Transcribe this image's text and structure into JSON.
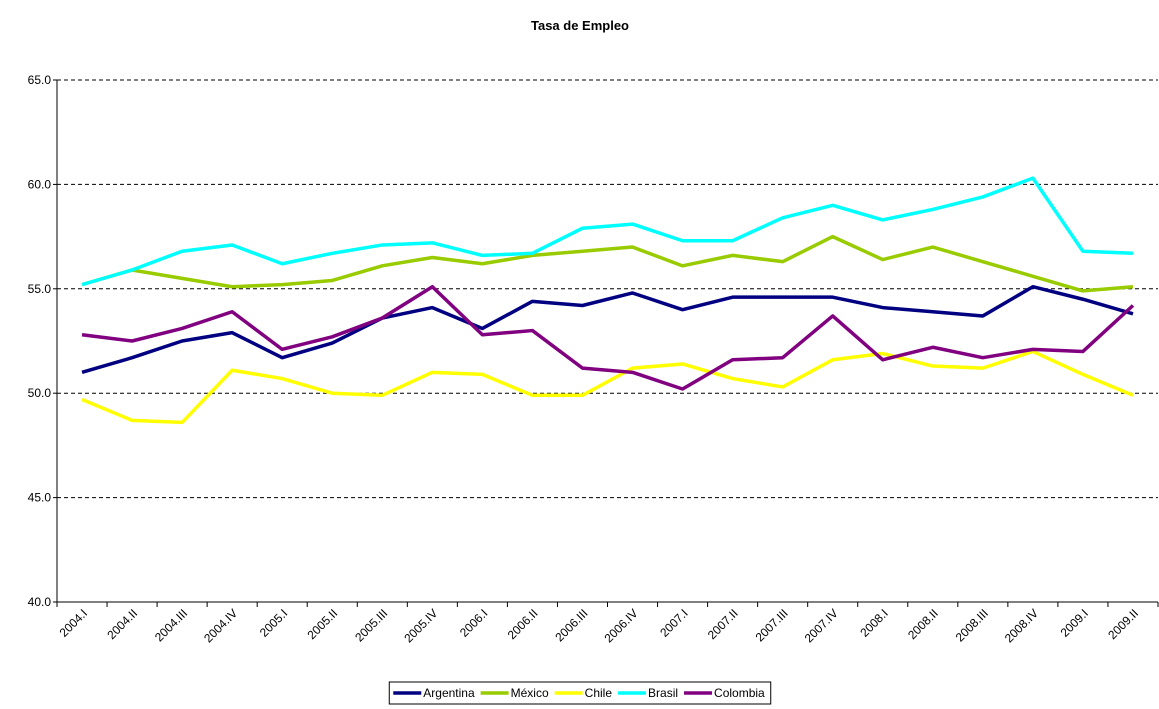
{
  "chart_data": {
    "type": "line",
    "title": "Tasa de Empleo",
    "categories": [
      "2004.I",
      "2004.II",
      "2004.III",
      "2004.IV",
      "2005.I",
      "2005.II",
      "2005.III",
      "2005.IV",
      "2006.I",
      "2006.II",
      "2006.III",
      "2006.IV",
      "2007.I",
      "2007.II",
      "2007.III",
      "2007.IV",
      "2008.I",
      "2008.II",
      "2008.III",
      "2008.IV",
      "2009.I",
      "2009.II"
    ],
    "series": [
      {
        "name": "Argentina",
        "color": "#000080",
        "values": [
          51.0,
          51.7,
          52.5,
          52.9,
          51.7,
          52.4,
          53.6,
          54.1,
          53.1,
          54.4,
          54.2,
          54.8,
          54.0,
          54.6,
          54.6,
          54.6,
          54.1,
          53.9,
          53.7,
          55.1,
          54.5,
          53.8
        ]
      },
      {
        "name": "México",
        "color": "#99cc00",
        "values": [
          55.2,
          55.9,
          55.5,
          55.1,
          55.2,
          55.4,
          56.1,
          56.5,
          56.2,
          56.6,
          56.8,
          57.0,
          56.1,
          56.6,
          56.3,
          57.5,
          56.4,
          57.0,
          56.3,
          55.6,
          54.9,
          55.1
        ]
      },
      {
        "name": "Chile",
        "color": "#ffff00",
        "values": [
          49.7,
          48.7,
          48.6,
          51.1,
          50.7,
          50.0,
          49.9,
          51.0,
          50.9,
          49.9,
          49.9,
          51.2,
          51.4,
          50.7,
          50.3,
          51.6,
          51.9,
          51.3,
          51.2,
          52.0,
          50.9,
          49.9
        ]
      },
      {
        "name": "Brasil",
        "color": "#00ffff",
        "values": [
          55.2,
          55.9,
          56.8,
          57.1,
          56.2,
          56.7,
          57.1,
          57.2,
          56.6,
          56.7,
          57.9,
          58.1,
          57.3,
          57.3,
          58.4,
          59.0,
          58.3,
          58.8,
          59.4,
          60.3,
          56.8,
          56.7
        ]
      },
      {
        "name": "Colombia",
        "color": "#800080",
        "values": [
          52.8,
          52.5,
          53.1,
          53.9,
          52.1,
          52.7,
          53.6,
          55.1,
          52.8,
          53.0,
          51.2,
          51.0,
          50.2,
          51.6,
          51.7,
          53.7,
          51.6,
          52.2,
          51.7,
          52.1,
          52.0,
          54.2
        ]
      }
    ],
    "ylim": [
      40,
      65
    ],
    "yticks": [
      {
        "value": 40,
        "label": "40.0"
      },
      {
        "value": 45,
        "label": "45.0"
      },
      {
        "value": 50,
        "label": "50.0"
      },
      {
        "value": 55,
        "label": "55.0"
      },
      {
        "value": 60,
        "label": "60.0"
      },
      {
        "value": 65,
        "label": "65.0"
      }
    ],
    "grid": true,
    "legend": "bottom"
  }
}
